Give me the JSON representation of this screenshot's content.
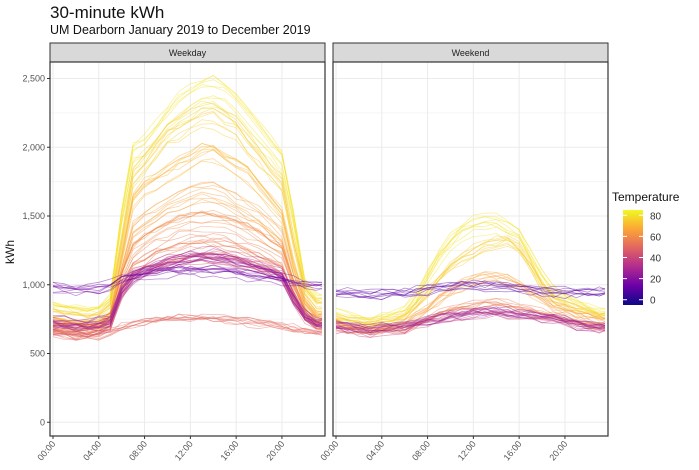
{
  "chart_data": {
    "type": "line",
    "title": "30-minute kWh",
    "subtitle": "UM Dearborn January 2019 to December 2019",
    "ylabel": "kWh",
    "xlabel": "",
    "ylim": [
      -100,
      2620
    ],
    "xlim_hours": [
      0,
      23.5
    ],
    "yticks": [
      0,
      500,
      1000,
      1500,
      2000,
      2500
    ],
    "ytick_labels": [
      "0",
      "500",
      "1,000",
      "1,500",
      "2,000",
      "2,500"
    ],
    "xticks": [
      0,
      4,
      8,
      12,
      16,
      20
    ],
    "xtick_labels": [
      "00:00",
      "04:00",
      "08:00",
      "12:00",
      "16:00",
      "20:00"
    ],
    "x_hours": [
      0,
      1,
      2,
      3,
      4,
      5,
      6,
      7,
      8,
      9,
      10,
      11,
      12,
      13,
      14,
      15,
      16,
      17,
      18,
      19,
      20,
      21,
      22,
      23
    ],
    "grid": true,
    "legend": {
      "title": "Temperature",
      "position": "right",
      "ticks": [
        80,
        60,
        40,
        20,
        0
      ],
      "tick_labels": [
        "80",
        "60",
        "40",
        "20",
        "0"
      ],
      "range": [
        -5,
        85
      ],
      "colors": [
        "#0d0887",
        "#6a00a8",
        "#b12a90",
        "#e16462",
        "#fca636",
        "#f0f921"
      ]
    },
    "panels": [
      {
        "name": "Weekday",
        "series": [
          {
            "temperature": 80,
            "values": [
              850,
              830,
              820,
              810,
              820,
              900,
              1500,
              1950,
              2000,
              2100,
              2200,
              2300,
              2350,
              2400,
              2420,
              2380,
              2300,
              2200,
              2100,
              2000,
              1900,
              1500,
              1000,
              900
            ]
          },
          {
            "temperature": 75,
            "values": [
              800,
              780,
              770,
              760,
              770,
              850,
              1300,
              1750,
              1850,
              1950,
              2050,
              2100,
              2150,
              2200,
              2200,
              2150,
              2100,
              2000,
              1900,
              1800,
              1700,
              1300,
              950,
              850
            ]
          },
          {
            "temperature": 70,
            "values": [
              750,
              740,
              730,
              720,
              730,
              800,
              1200,
              1600,
              1700,
              1750,
              1800,
              1850,
              1900,
              1950,
              1950,
              1900,
              1850,
              1800,
              1700,
              1600,
              1500,
              1150,
              900,
              800
            ]
          },
          {
            "temperature": 65,
            "values": [
              720,
              700,
              690,
              690,
              700,
              760,
              1100,
              1400,
              1480,
              1530,
              1580,
              1620,
              1650,
              1680,
              1680,
              1650,
              1600,
              1550,
              1500,
              1420,
              1350,
              1050,
              850,
              760
            ]
          },
          {
            "temperature": 60,
            "values": [
              700,
              690,
              680,
              680,
              690,
              740,
              1050,
              1250,
              1320,
              1370,
              1420,
              1450,
              1470,
              1480,
              1480,
              1460,
              1430,
              1400,
              1350,
              1300,
              1250,
              1000,
              800,
              730
            ]
          },
          {
            "temperature": 55,
            "values": [
              690,
              680,
              670,
              670,
              680,
              720,
              1000,
              1150,
              1200,
              1250,
              1280,
              1310,
              1330,
              1340,
              1340,
              1320,
              1300,
              1270,
              1230,
              1190,
              1150,
              950,
              780,
              710
            ]
          },
          {
            "temperature": 45,
            "values": [
              680,
              670,
              660,
              660,
              670,
              700,
              950,
              1080,
              1120,
              1150,
              1180,
              1200,
              1210,
              1220,
              1220,
              1210,
              1190,
              1170,
              1140,
              1110,
              1080,
              900,
              760,
              700
            ]
          },
          {
            "temperature": 35,
            "values": [
              700,
              690,
              680,
              680,
              690,
              710,
              950,
              1060,
              1100,
              1130,
              1160,
              1180,
              1200,
              1210,
              1210,
              1200,
              1180,
              1160,
              1130,
              1100,
              1070,
              900,
              760,
              700
            ]
          },
          {
            "temperature": 25,
            "values": [
              740,
              730,
              720,
              720,
              730,
              750,
              960,
              1060,
              1100,
              1130,
              1150,
              1170,
              1180,
              1190,
              1190,
              1180,
              1160,
              1140,
              1120,
              1090,
              1060,
              900,
              780,
              730
            ]
          },
          {
            "temperature": 15,
            "values": [
              980,
              970,
              960,
              960,
              970,
              990,
              1040,
              1060,
              1080,
              1090,
              1100,
              1100,
              1100,
              1100,
              1100,
              1090,
              1080,
              1070,
              1060,
              1050,
              1040,
              1020,
              1000,
              990
            ]
          },
          {
            "temperature": 50,
            "values": [
              650,
              640,
              630,
              630,
              640,
              660,
              700,
              730,
              740,
              750,
              760,
              770,
              770,
              770,
              770,
              760,
              750,
              740,
              730,
              720,
              710,
              690,
              670,
              660
            ]
          }
        ]
      },
      {
        "name": "Weekend",
        "series": [
          {
            "temperature": 80,
            "values": [
              780,
              760,
              750,
              740,
              750,
              770,
              800,
              900,
              1050,
              1200,
              1300,
              1380,
              1420,
              1450,
              1430,
              1400,
              1350,
              1200,
              1050,
              950,
              900,
              860,
              820,
              800
            ]
          },
          {
            "temperature": 75,
            "values": [
              760,
              740,
              730,
              720,
              730,
              750,
              780,
              850,
              950,
              1050,
              1150,
              1200,
              1250,
              1300,
              1320,
              1340,
              1280,
              1150,
              1000,
              900,
              860,
              830,
              800,
              780
            ]
          },
          {
            "temperature": 65,
            "values": [
              720,
              700,
              690,
              680,
              690,
              700,
              720,
              770,
              830,
              900,
              950,
              1000,
              1030,
              1050,
              1050,
              1040,
              1000,
              950,
              900,
              850,
              820,
              790,
              760,
              740
            ]
          },
          {
            "temperature": 55,
            "values": [
              690,
              680,
              670,
              660,
              670,
              680,
              690,
              720,
              760,
              800,
              830,
              850,
              860,
              870,
              870,
              860,
              840,
              820,
              800,
              780,
              760,
              740,
              720,
              700
            ]
          },
          {
            "temperature": 40,
            "values": [
              680,
              670,
              660,
              650,
              660,
              670,
              680,
              700,
              720,
              740,
              760,
              770,
              780,
              790,
              790,
              780,
              770,
              760,
              750,
              740,
              720,
              700,
              690,
              680
            ]
          },
          {
            "temperature": 25,
            "values": [
              700,
              690,
              680,
              670,
              680,
              690,
              700,
              710,
              730,
              750,
              770,
              780,
              790,
              800,
              800,
              790,
              780,
              770,
              760,
              750,
              730,
              710,
              700,
              690
            ]
          },
          {
            "temperature": 10,
            "values": [
              950,
              940,
              930,
              930,
              930,
              940,
              950,
              960,
              970,
              980,
              990,
              1000,
              1000,
              1000,
              1000,
              990,
              980,
              970,
              960,
              950,
              950,
              950,
              950,
              950
            ]
          }
        ]
      }
    ]
  }
}
